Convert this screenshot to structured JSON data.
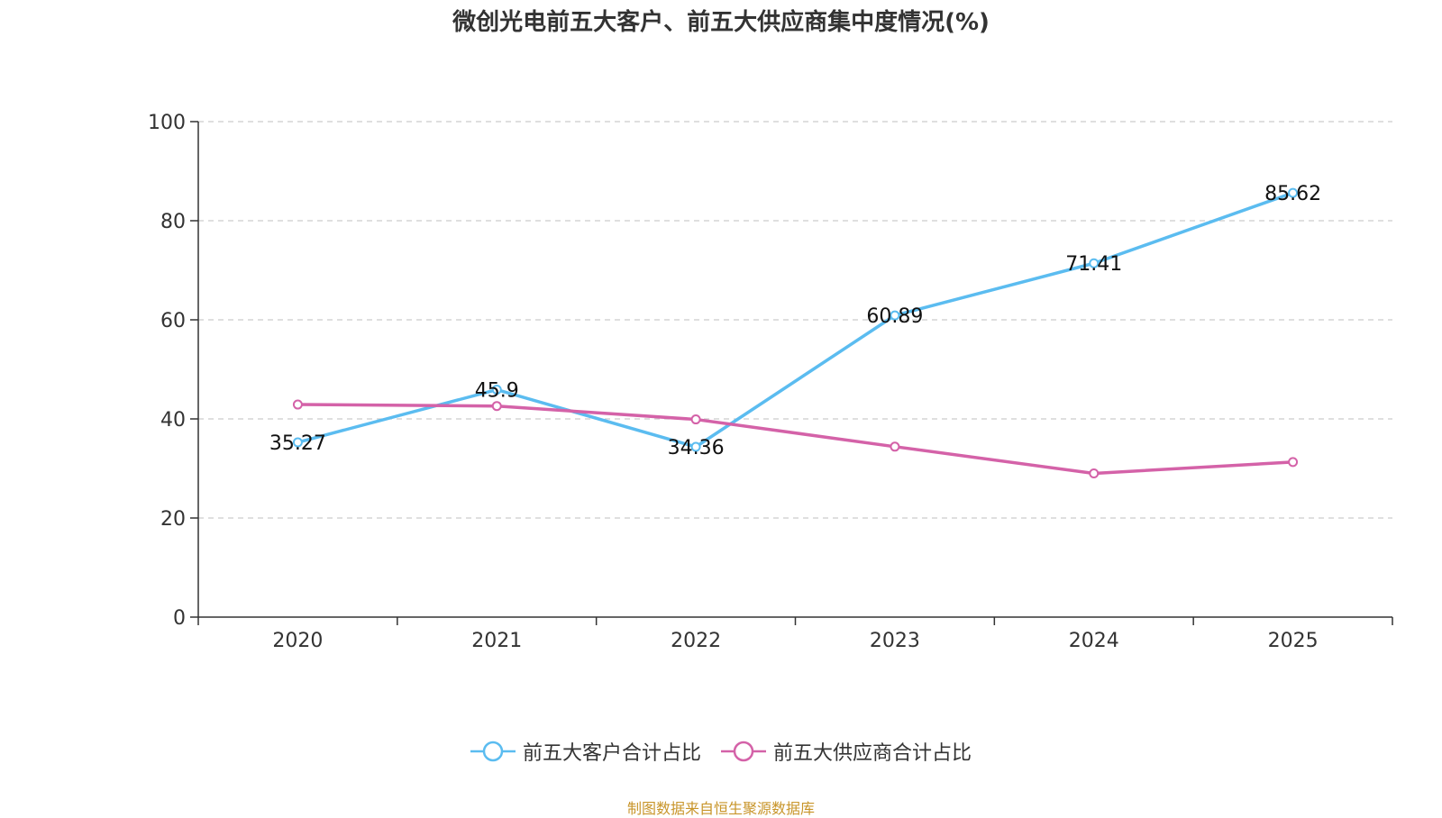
{
  "chart_data": {
    "type": "line",
    "title": "微创光电前五大客户、前五大供应商集中度情况(%)",
    "categories": [
      "2020",
      "2021",
      "2022",
      "2023",
      "2024",
      "2025"
    ],
    "ylim": [
      0,
      100
    ],
    "yticks": [
      0,
      20,
      40,
      60,
      80,
      100
    ],
    "grid": true,
    "legend_position": "bottom",
    "series": [
      {
        "name": "前五大客户合计占比",
        "color": "#5bbcf0",
        "values": [
          35.27,
          45.9,
          34.36,
          60.89,
          71.41,
          85.62
        ],
        "labels": [
          "35.27",
          "45.9",
          "34.36",
          "60.89",
          "71.41",
          "85.62"
        ],
        "show_labels": true
      },
      {
        "name": "前五大供应商合计占比",
        "color": "#d462a8",
        "values": [
          42.9,
          42.6,
          39.9,
          34.4,
          29.0,
          31.3
        ],
        "show_labels": false
      }
    ]
  },
  "footer": {
    "source": "制图数据来自恒生聚源数据库"
  }
}
